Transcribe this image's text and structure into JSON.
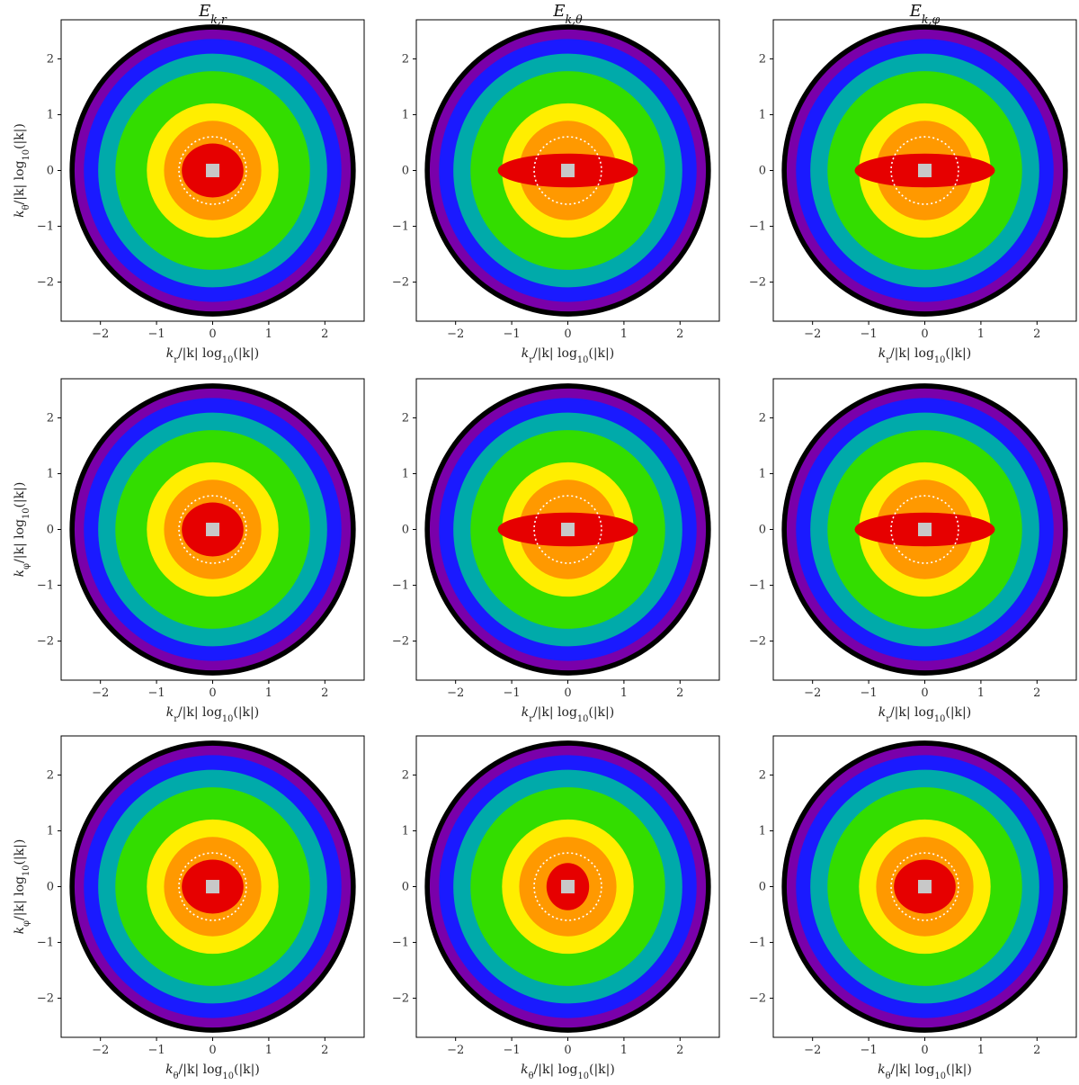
{
  "figure": {
    "column_titles": [
      "E_{k,r}",
      "E_{k,θ}",
      "E_{k,φ}"
    ],
    "row_ylabels": [
      "k_θ/|k| log10(|k|)",
      "k_φ/|k| log10(|k|)",
      "k_φ/|k| log10(|k|)"
    ],
    "row_xlabels": [
      "k_r/|k| log10(|k|)",
      "k_r/|k| log10(|k|)",
      "k_θ/|k| log10(|k|)"
    ],
    "colors": {
      "red": "#e60000",
      "orange": "#ff9900",
      "yellow": "#ffee00",
      "green": "#33dd00",
      "teal": "#00aaaa",
      "blue": "#1a1aff",
      "purple": "#7a00aa",
      "black": "#000000",
      "saturated": "#c8c8c8",
      "reference_circle": "#ffffff"
    }
  },
  "chart_data": [
    {
      "type": "heatmap",
      "title": "E_{k,r}",
      "xlabel": "k_r/|k| log10(|k|)",
      "ylabel": "k_θ/|k| log10(|k|)",
      "xlim": [
        -2.7,
        2.7
      ],
      "ylim": [
        -2.7,
        2.7
      ],
      "xticks": [
        -2,
        -1,
        0,
        1,
        2
      ],
      "yticks": [
        -2,
        -1,
        0,
        1,
        2
      ],
      "core_shape": "round",
      "circle_radius": 0.6
    },
    {
      "type": "heatmap",
      "title": "E_{k,θ}",
      "xlabel": "k_r/|k| log10(|k|)",
      "ylabel": "",
      "xlim": [
        -2.7,
        2.7
      ],
      "ylim": [
        -2.7,
        2.7
      ],
      "xticks": [
        -2,
        -1,
        0,
        1,
        2
      ],
      "yticks": [
        -2,
        -1,
        0,
        1,
        2
      ],
      "core_shape": "elongated",
      "circle_radius": 0.6
    },
    {
      "type": "heatmap",
      "title": "E_{k,φ}",
      "xlabel": "k_r/|k| log10(|k|)",
      "ylabel": "",
      "xlim": [
        -2.7,
        2.7
      ],
      "ylim": [
        -2.7,
        2.7
      ],
      "xticks": [
        -2,
        -1,
        0,
        1,
        2
      ],
      "yticks": [
        -2,
        -1,
        0,
        1,
        2
      ],
      "core_shape": "elongated",
      "circle_radius": 0.6
    },
    {
      "type": "heatmap",
      "title": "",
      "xlabel": "k_r/|k| log10(|k|)",
      "ylabel": "k_φ/|k| log10(|k|)",
      "xlim": [
        -2.7,
        2.7
      ],
      "ylim": [
        -2.7,
        2.7
      ],
      "xticks": [
        -2,
        -1,
        0,
        1,
        2
      ],
      "yticks": [
        -2,
        -1,
        0,
        1,
        2
      ],
      "core_shape": "round",
      "circle_radius": 0.6
    },
    {
      "type": "heatmap",
      "title": "",
      "xlabel": "k_r/|k| log10(|k|)",
      "ylabel": "",
      "xlim": [
        -2.7,
        2.7
      ],
      "ylim": [
        -2.7,
        2.7
      ],
      "xticks": [
        -2,
        -1,
        0,
        1,
        2
      ],
      "yticks": [
        -2,
        -1,
        0,
        1,
        2
      ],
      "core_shape": "elongated",
      "circle_radius": 0.6
    },
    {
      "type": "heatmap",
      "title": "",
      "xlabel": "k_r/|k| log10(|k|)",
      "ylabel": "",
      "xlim": [
        -2.7,
        2.7
      ],
      "ylim": [
        -2.7,
        2.7
      ],
      "xticks": [
        -2,
        -1,
        0,
        1,
        2
      ],
      "yticks": [
        -2,
        -1,
        0,
        1,
        2
      ],
      "core_shape": "elongated",
      "circle_radius": 0.6
    },
    {
      "type": "heatmap",
      "title": "",
      "xlabel": "k_θ/|k| log10(|k|)",
      "ylabel": "k_φ/|k| log10(|k|)",
      "xlim": [
        -2.7,
        2.7
      ],
      "ylim": [
        -2.7,
        2.7
      ],
      "xticks": [
        -2,
        -1,
        0,
        1,
        2
      ],
      "yticks": [
        -2,
        -1,
        0,
        1,
        2
      ],
      "core_shape": "round",
      "circle_radius": 0.6
    },
    {
      "type": "heatmap",
      "title": "",
      "xlabel": "k_θ/|k| log10(|k|)",
      "ylabel": "",
      "xlim": [
        -2.7,
        2.7
      ],
      "ylim": [
        -2.7,
        2.7
      ],
      "xticks": [
        -2,
        -1,
        0,
        1,
        2
      ],
      "yticks": [
        -2,
        -1,
        0,
        1,
        2
      ],
      "core_shape": "small",
      "circle_radius": 0.6
    },
    {
      "type": "heatmap",
      "title": "",
      "xlabel": "k_θ/|k| log10(|k|)",
      "ylabel": "",
      "xlim": [
        -2.7,
        2.7
      ],
      "ylim": [
        -2.7,
        2.7
      ],
      "xticks": [
        -2,
        -1,
        0,
        1,
        2
      ],
      "yticks": [
        -2,
        -1,
        0,
        1,
        2
      ],
      "core_shape": "round",
      "circle_radius": 0.6
    }
  ]
}
